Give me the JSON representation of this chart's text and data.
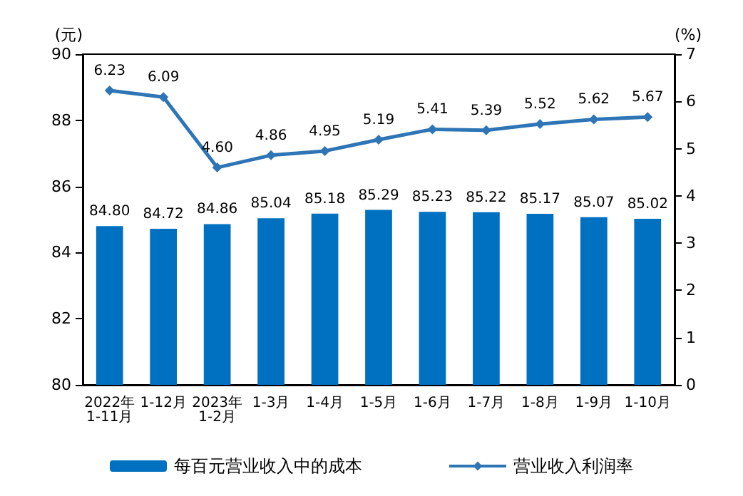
{
  "chart_data": {
    "type": "bar",
    "ylabel": "(元)",
    "y2label": "(%)",
    "categories": [
      "2022年\n1-11月",
      "1-12月",
      "2023年\n1-2月",
      "1-3月",
      "1-4月",
      "1-5月",
      "1-6月",
      "1-7月",
      "1-8月",
      "1-9月",
      "1-10月"
    ],
    "series": [
      {
        "name": "每百元营业收入中的成本",
        "color": "#0070c0",
        "values": [
          84.8,
          84.72,
          84.86,
          85.04,
          85.18,
          85.29,
          85.23,
          85.22,
          85.17,
          85.07,
          85.02
        ],
        "value_labels": [
          "84.80",
          "84.72",
          "84.86",
          "85.04",
          "85.18",
          "85.29",
          "85.23",
          "85.22",
          "85.17",
          "85.07",
          "85.02"
        ]
      },
      {
        "name": "营业收入利润率",
        "type": "line",
        "axis": "y2",
        "color": "#2e75b6",
        "marker": "diamond",
        "values": [
          6.23,
          6.09,
          4.6,
          4.86,
          4.95,
          5.19,
          5.41,
          5.39,
          5.52,
          5.62,
          5.67
        ],
        "value_labels": [
          "6.23",
          "6.09",
          "4.60",
          "4.86",
          "4.95",
          "5.19",
          "5.41",
          "5.39",
          "5.52",
          "5.62",
          "5.67"
        ]
      }
    ],
    "ylim": [
      80,
      90
    ],
    "yticks": [
      80,
      82,
      84,
      86,
      88,
      90
    ],
    "y2lim": [
      0,
      7
    ],
    "y2ticks": [
      0,
      1,
      2,
      3,
      4,
      5,
      6,
      7
    ],
    "grid": false,
    "legend": "bottom"
  }
}
